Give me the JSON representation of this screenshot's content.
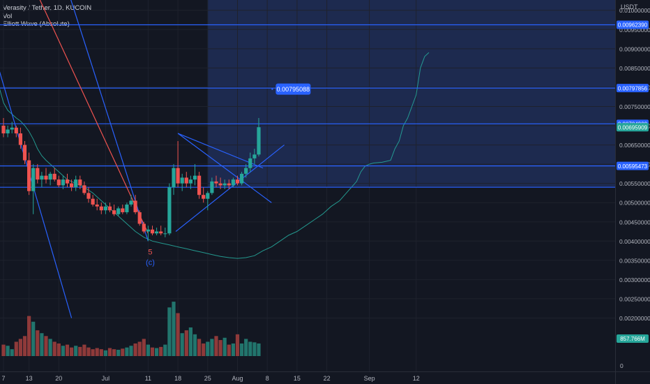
{
  "header": {
    "symbol_line": "Verasity / Tether, 1D, KUCOIN",
    "indicator_vol": "Vol",
    "indicator_ew": "Elliott Wave (Absolute)"
  },
  "chart_data": {
    "type": "candlestick",
    "currency_label": "USDT",
    "ylim": [
      0.0018,
      0.0105
    ],
    "y_ticks": [
      "0.00200000",
      "0.00250000",
      "0.00300000",
      "0.00350000",
      "0.00400000",
      "0.00450000",
      "0.00500000",
      "0.00550000",
      "0.00600000",
      "0.00650000",
      "0.00700000",
      "0.00750000",
      "0.00800000",
      "0.00850000",
      "0.00900000",
      "0.00950000",
      "0.01000000"
    ],
    "x_ticks": [
      {
        "label": "7",
        "day": 0
      },
      {
        "label": "13",
        "day": 6
      },
      {
        "label": "20",
        "day": 13
      },
      {
        "label": "Jul",
        "day": 24
      },
      {
        "label": "11",
        "day": 34
      },
      {
        "label": "18",
        "day": 41
      },
      {
        "label": "25",
        "day": 48
      },
      {
        "label": "Aug",
        "day": 55
      },
      {
        "label": "8",
        "day": 62
      },
      {
        "label": "15",
        "day": 69
      },
      {
        "label": "22",
        "day": 76
      },
      {
        "label": "Sep",
        "day": 86
      },
      {
        "label": "12",
        "day": 97
      }
    ],
    "zero_label": "0",
    "horizontal_levels": [
      {
        "price": 0.0096239,
        "label": "0.00962390"
      },
      {
        "price": 0.00797856,
        "label": "0.00797856"
      },
      {
        "price": 0.007049,
        "label": "0.00704900"
      },
      {
        "price": 0.00595473,
        "label": "0.00595473"
      },
      {
        "price": 0.0054,
        "label": ""
      }
    ],
    "price_labels": [
      {
        "price": 0.0096239,
        "text": "0.00962390",
        "color": "#2962ff"
      },
      {
        "price": 0.00797856,
        "text": "0.00797856",
        "color": "#2962ff"
      },
      {
        "price": 0.007049,
        "text": "0.00704900",
        "color": "#2962ff"
      },
      {
        "price": 0.00695909,
        "text": "0.00695909",
        "color": "#26a69a"
      },
      {
        "price": 0.00595473,
        "text": "0.00595473",
        "color": "#2962ff"
      }
    ],
    "volume_label": "857.766M",
    "callout": {
      "text": "0.00795088",
      "day": 64,
      "price": 0.00795088
    },
    "wave_labels": [
      {
        "text": "5",
        "day": 34.5,
        "price": 0.00365,
        "color": "#ef5350"
      },
      {
        "text": "(c)",
        "day": 34.5,
        "price": 0.00338,
        "color": "#2962ff"
      }
    ],
    "candles": [
      {
        "o": 0.007,
        "h": 0.0072,
        "l": 0.0067,
        "c": 0.0068,
        "v": 20
      },
      {
        "o": 0.0068,
        "h": 0.007,
        "l": 0.0067,
        "c": 0.0069,
        "v": 18
      },
      {
        "o": 0.0069,
        "h": 0.0071,
        "l": 0.0068,
        "c": 0.00695,
        "v": 12
      },
      {
        "o": 0.00695,
        "h": 0.007,
        "l": 0.0067,
        "c": 0.0068,
        "v": 25
      },
      {
        "o": 0.0068,
        "h": 0.00695,
        "l": 0.0064,
        "c": 0.0065,
        "v": 30
      },
      {
        "o": 0.0065,
        "h": 0.0066,
        "l": 0.006,
        "c": 0.0061,
        "v": 35
      },
      {
        "o": 0.0061,
        "h": 0.0063,
        "l": 0.0052,
        "c": 0.0053,
        "v": 70
      },
      {
        "o": 0.0053,
        "h": 0.006,
        "l": 0.0047,
        "c": 0.0059,
        "v": 60
      },
      {
        "o": 0.0059,
        "h": 0.006,
        "l": 0.0055,
        "c": 0.0056,
        "v": 45
      },
      {
        "o": 0.0056,
        "h": 0.0058,
        "l": 0.0054,
        "c": 0.0057,
        "v": 40
      },
      {
        "o": 0.0057,
        "h": 0.0059,
        "l": 0.0055,
        "c": 0.0056,
        "v": 35
      },
      {
        "o": 0.0056,
        "h": 0.0058,
        "l": 0.00545,
        "c": 0.00575,
        "v": 30
      },
      {
        "o": 0.00575,
        "h": 0.0059,
        "l": 0.00555,
        "c": 0.0056,
        "v": 25
      },
      {
        "o": 0.0056,
        "h": 0.0057,
        "l": 0.0054,
        "c": 0.00545,
        "v": 22
      },
      {
        "o": 0.00545,
        "h": 0.0057,
        "l": 0.00535,
        "c": 0.0056,
        "v": 18
      },
      {
        "o": 0.0056,
        "h": 0.00575,
        "l": 0.0054,
        "c": 0.0055,
        "v": 20
      },
      {
        "o": 0.0055,
        "h": 0.0056,
        "l": 0.0053,
        "c": 0.0054,
        "v": 15
      },
      {
        "o": 0.0054,
        "h": 0.0057,
        "l": 0.0053,
        "c": 0.0056,
        "v": 18
      },
      {
        "o": 0.0056,
        "h": 0.0057,
        "l": 0.00535,
        "c": 0.00545,
        "v": 16
      },
      {
        "o": 0.00545,
        "h": 0.00555,
        "l": 0.0052,
        "c": 0.00525,
        "v": 20
      },
      {
        "o": 0.00525,
        "h": 0.0054,
        "l": 0.005,
        "c": 0.0051,
        "v": 15
      },
      {
        "o": 0.0051,
        "h": 0.0052,
        "l": 0.0049,
        "c": 0.00495,
        "v": 12
      },
      {
        "o": 0.00495,
        "h": 0.0051,
        "l": 0.0048,
        "c": 0.0049,
        "v": 14
      },
      {
        "o": 0.0049,
        "h": 0.005,
        "l": 0.0047,
        "c": 0.0048,
        "v": 12
      },
      {
        "o": 0.0048,
        "h": 0.005,
        "l": 0.0047,
        "c": 0.0049,
        "v": 10
      },
      {
        "o": 0.0049,
        "h": 0.005,
        "l": 0.00475,
        "c": 0.0048,
        "v": 14
      },
      {
        "o": 0.0048,
        "h": 0.00495,
        "l": 0.00465,
        "c": 0.0047,
        "v": 12
      },
      {
        "o": 0.0047,
        "h": 0.0049,
        "l": 0.00465,
        "c": 0.00485,
        "v": 11
      },
      {
        "o": 0.00485,
        "h": 0.00495,
        "l": 0.0047,
        "c": 0.00475,
        "v": 13
      },
      {
        "o": 0.00475,
        "h": 0.005,
        "l": 0.0047,
        "c": 0.00495,
        "v": 15
      },
      {
        "o": 0.00495,
        "h": 0.0052,
        "l": 0.0049,
        "c": 0.00505,
        "v": 18
      },
      {
        "o": 0.00505,
        "h": 0.0052,
        "l": 0.0047,
        "c": 0.00475,
        "v": 22
      },
      {
        "o": 0.00475,
        "h": 0.0048,
        "l": 0.0044,
        "c": 0.00445,
        "v": 25
      },
      {
        "o": 0.00445,
        "h": 0.0045,
        "l": 0.0042,
        "c": 0.00425,
        "v": 30
      },
      {
        "o": 0.00425,
        "h": 0.0044,
        "l": 0.004,
        "c": 0.0043,
        "v": 20
      },
      {
        "o": 0.0043,
        "h": 0.0044,
        "l": 0.00415,
        "c": 0.0042,
        "v": 15
      },
      {
        "o": 0.0042,
        "h": 0.00435,
        "l": 0.00415,
        "c": 0.00425,
        "v": 14
      },
      {
        "o": 0.00425,
        "h": 0.0044,
        "l": 0.00415,
        "c": 0.0042,
        "v": 16
      },
      {
        "o": 0.0042,
        "h": 0.00435,
        "l": 0.0041,
        "c": 0.0042,
        "v": 20
      },
      {
        "o": 0.0042,
        "h": 0.0055,
        "l": 0.00415,
        "c": 0.0054,
        "v": 85
      },
      {
        "o": 0.0054,
        "h": 0.006,
        "l": 0.0052,
        "c": 0.0059,
        "v": 95
      },
      {
        "o": 0.0059,
        "h": 0.0066,
        "l": 0.0054,
        "c": 0.0055,
        "v": 75
      },
      {
        "o": 0.0055,
        "h": 0.00575,
        "l": 0.0053,
        "c": 0.00565,
        "v": 40
      },
      {
        "o": 0.00565,
        "h": 0.0058,
        "l": 0.0054,
        "c": 0.0055,
        "v": 45
      },
      {
        "o": 0.0055,
        "h": 0.0057,
        "l": 0.00535,
        "c": 0.0056,
        "v": 50
      },
      {
        "o": 0.0056,
        "h": 0.006,
        "l": 0.00545,
        "c": 0.0057,
        "v": 38
      },
      {
        "o": 0.0057,
        "h": 0.0058,
        "l": 0.0051,
        "c": 0.0052,
        "v": 30
      },
      {
        "o": 0.0052,
        "h": 0.0054,
        "l": 0.005,
        "c": 0.0051,
        "v": 22
      },
      {
        "o": 0.0051,
        "h": 0.0053,
        "l": 0.0048,
        "c": 0.00525,
        "v": 25
      },
      {
        "o": 0.00525,
        "h": 0.00565,
        "l": 0.0052,
        "c": 0.00555,
        "v": 30
      },
      {
        "o": 0.00555,
        "h": 0.0057,
        "l": 0.0054,
        "c": 0.0055,
        "v": 35
      },
      {
        "o": 0.0055,
        "h": 0.00565,
        "l": 0.00535,
        "c": 0.00545,
        "v": 28
      },
      {
        "o": 0.00545,
        "h": 0.0056,
        "l": 0.00535,
        "c": 0.0055,
        "v": 32
      },
      {
        "o": 0.0055,
        "h": 0.0056,
        "l": 0.00535,
        "c": 0.00545,
        "v": 20
      },
      {
        "o": 0.00545,
        "h": 0.00565,
        "l": 0.0054,
        "c": 0.0056,
        "v": 22
      },
      {
        "o": 0.0056,
        "h": 0.0057,
        "l": 0.00545,
        "c": 0.0055,
        "v": 38
      },
      {
        "o": 0.0055,
        "h": 0.0058,
        "l": 0.00545,
        "c": 0.00575,
        "v": 22
      },
      {
        "o": 0.00575,
        "h": 0.006,
        "l": 0.00565,
        "c": 0.0059,
        "v": 30
      },
      {
        "o": 0.0059,
        "h": 0.0063,
        "l": 0.0058,
        "c": 0.00615,
        "v": 25
      },
      {
        "o": 0.00615,
        "h": 0.0064,
        "l": 0.006,
        "c": 0.00625,
        "v": 24
      },
      {
        "o": 0.00625,
        "h": 0.0072,
        "l": 0.0062,
        "c": 0.00696,
        "v": 22
      }
    ],
    "ma_line": [
      [
        -3,
        0.0085
      ],
      [
        -2,
        0.0083
      ],
      [
        -1,
        0.008
      ],
      [
        0,
        0.0076
      ],
      [
        1,
        0.0074
      ],
      [
        2,
        0.0073
      ],
      [
        3,
        0.0072
      ],
      [
        4,
        0.00712
      ],
      [
        5,
        0.007
      ],
      [
        6,
        0.00685
      ],
      [
        7,
        0.00665
      ],
      [
        8,
        0.0064
      ],
      [
        9,
        0.00622
      ],
      [
        10,
        0.0061
      ],
      [
        11,
        0.006
      ],
      [
        12,
        0.0059
      ],
      [
        13,
        0.0058
      ],
      [
        14,
        0.0057
      ],
      [
        15,
        0.0056
      ],
      [
        17,
        0.0055
      ],
      [
        19,
        0.0054
      ],
      [
        21,
        0.00525
      ],
      [
        23,
        0.00505
      ],
      [
        25,
        0.00485
      ],
      [
        27,
        0.00465
      ],
      [
        29,
        0.00445
      ],
      [
        31,
        0.00425
      ],
      [
        33,
        0.0041
      ],
      [
        35,
        0.004
      ],
      [
        37,
        0.00395
      ],
      [
        39,
        0.0039
      ],
      [
        41,
        0.00385
      ],
      [
        43,
        0.0038
      ],
      [
        45,
        0.00375
      ],
      [
        47,
        0.0037
      ],
      [
        49,
        0.00365
      ],
      [
        51,
        0.0036
      ],
      [
        53,
        0.00357
      ],
      [
        55,
        0.00355
      ],
      [
        57,
        0.00357
      ],
      [
        59,
        0.00362
      ],
      [
        61,
        0.00375
      ],
      [
        63,
        0.00385
      ],
      [
        65,
        0.004
      ],
      [
        67,
        0.00415
      ],
      [
        69,
        0.00425
      ],
      [
        71,
        0.0044
      ],
      [
        73,
        0.00455
      ],
      [
        75,
        0.0047
      ],
      [
        77,
        0.0049
      ],
      [
        79,
        0.00505
      ],
      [
        81,
        0.0053
      ],
      [
        83,
        0.00555
      ],
      [
        84,
        0.0058
      ],
      [
        85,
        0.00595
      ],
      [
        86,
        0.006
      ],
      [
        87,
        0.00603
      ],
      [
        89,
        0.00605
      ],
      [
        91,
        0.0061
      ],
      [
        92,
        0.0064
      ],
      [
        93,
        0.0066
      ],
      [
        94,
        0.007
      ],
      [
        95,
        0.0072
      ],
      [
        96,
        0.0075
      ],
      [
        97,
        0.0078
      ],
      [
        98,
        0.0085
      ],
      [
        99,
        0.0088
      ],
      [
        100,
        0.0089
      ]
    ],
    "trend_lines": [
      {
        "from": [
          -3,
          0.0092
        ],
        "to": [
          16,
          0.002
        ],
        "color": "#2962ff"
      },
      {
        "from": [
          12,
          0.0116
        ],
        "to": [
          34,
          0.004
        ],
        "color": "#2962ff"
      },
      {
        "from": [
          3,
          0.0116
        ],
        "to": [
          34,
          0.0042
        ],
        "color": "#ef5350"
      },
      {
        "from": [
          41,
          0.0068
        ],
        "to": [
          61,
          0.0059
        ],
        "color": "#2962ff"
      },
      {
        "from": [
          41,
          0.0068
        ],
        "to": [
          63,
          0.005
        ],
        "color": "#2962ff"
      },
      {
        "from": [
          40.5,
          0.00425
        ],
        "to": [
          66,
          0.0065
        ],
        "color": "#2962ff"
      }
    ],
    "zone": {
      "from_day": 48,
      "price_top": 0.0105,
      "price_bottom": 0.0054
    },
    "grid": true,
    "legend": "top-left"
  }
}
